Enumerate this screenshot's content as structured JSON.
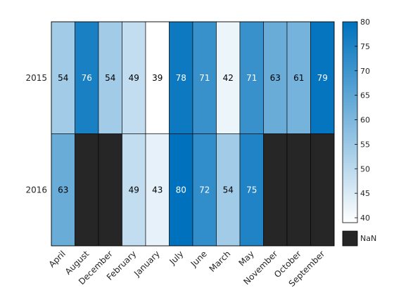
{
  "chart_data": {
    "type": "heatmap",
    "title": "",
    "xlabel": "",
    "ylabel": "",
    "x": [
      "April",
      "August",
      "December",
      "February",
      "January",
      "July",
      "June",
      "March",
      "May",
      "November",
      "October",
      "September"
    ],
    "y": [
      "2015",
      "2016"
    ],
    "values": [
      [
        54,
        76,
        54,
        49,
        39,
        78,
        71,
        42,
        71,
        63,
        61,
        79
      ],
      [
        63,
        null,
        null,
        49,
        43,
        80,
        72,
        54,
        75,
        null,
        null,
        null
      ]
    ],
    "colorbar": {
      "range": [
        39,
        80
      ],
      "ticks": [
        "40",
        "45",
        "50",
        "55",
        "60",
        "65",
        "70",
        "75",
        "80"
      ],
      "missing_label": "NaN",
      "colors": {
        "low": "#ffffff",
        "high": "#0072bd",
        "missing": "#262626"
      }
    },
    "grid": false
  }
}
